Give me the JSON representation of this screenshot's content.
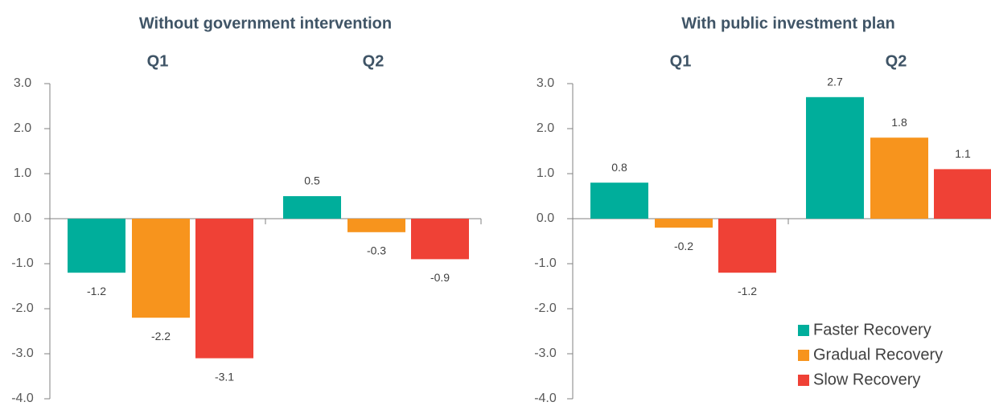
{
  "chart_data": [
    {
      "type": "bar",
      "title": "Without government intervention",
      "categories": [
        "Q1",
        "Q2"
      ],
      "series": [
        {
          "color": "#00ae9b",
          "values": [
            -1.2,
            0.5
          ]
        },
        {
          "color": "#f7941d",
          "values": [
            -2.2,
            -0.3
          ]
        },
        {
          "color": "#ef4136",
          "values": [
            -3.1,
            -0.9
          ]
        }
      ],
      "ylim": [
        -4,
        3
      ],
      "yticks": [
        {
          "value": 3,
          "label": "3.0"
        },
        {
          "value": 2,
          "label": "2.0"
        },
        {
          "value": 1,
          "label": "1.0"
        },
        {
          "value": 0,
          "label": "0.0"
        },
        {
          "value": -1,
          "label": "-1.0"
        },
        {
          "value": -2,
          "label": "-2.0"
        },
        {
          "value": -3,
          "label": "-3.0"
        },
        {
          "value": -4,
          "label": "-4.0"
        }
      ]
    },
    {
      "type": "bar",
      "title": "With public investment plan",
      "categories": [
        "Q1",
        "Q2"
      ],
      "series": [
        {
          "name": "Faster Recovery",
          "color": "#00ae9b",
          "values": [
            0.8,
            2.7
          ]
        },
        {
          "name": "Gradual Recovery",
          "color": "#f7941d",
          "values": [
            -0.2,
            1.8
          ]
        },
        {
          "name": "Slow Recovery",
          "color": "#ef4136",
          "values": [
            -1.2,
            1.1
          ]
        }
      ],
      "ylim": [
        -4,
        3
      ],
      "yticks": [
        {
          "value": 3,
          "label": "3.0"
        },
        {
          "value": 2,
          "label": "2.0"
        },
        {
          "value": 1,
          "label": "1.0"
        },
        {
          "value": 0,
          "label": "0.0"
        },
        {
          "value": -1,
          "label": "-1.0"
        },
        {
          "value": -2,
          "label": "-2.0"
        },
        {
          "value": -3,
          "label": "-3.0"
        },
        {
          "value": -4,
          "label": "-4.0"
        }
      ],
      "legend": "lower right"
    }
  ]
}
